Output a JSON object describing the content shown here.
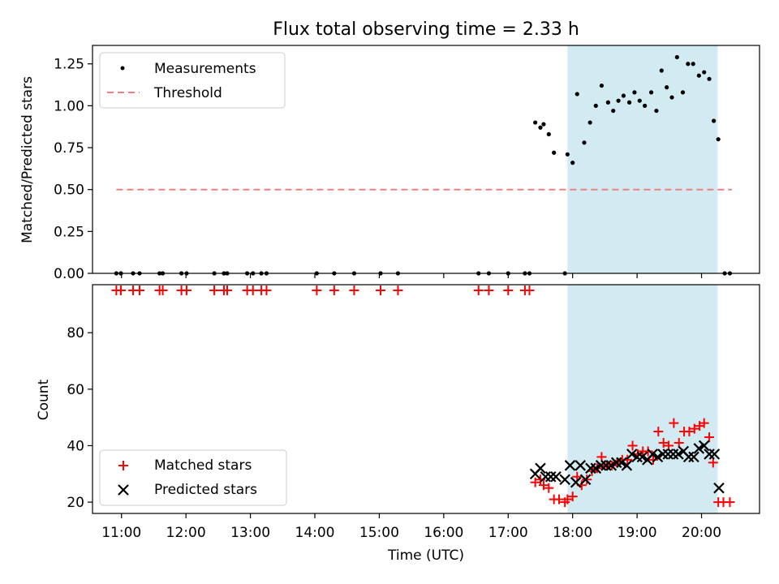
{
  "title": "Flux total observing time = 2.33 h",
  "colors": {
    "threshold": "#f08080",
    "highlight": "#add8e6",
    "measurement": "#000000",
    "matched": "#ff0000",
    "predicted": "#000000"
  },
  "chart_data": [
    {
      "type": "scatter",
      "ylabel": "Matched/Predicted stars",
      "xlim": [
        10.55,
        20.9
      ],
      "ylim": [
        0,
        1.36
      ],
      "y_ticks": [
        0.0,
        0.25,
        0.5,
        0.75,
        1.0,
        1.25
      ],
      "y_tick_labels": [
        "0.00",
        "0.25",
        "0.50",
        "0.75",
        "1.00",
        "1.25"
      ],
      "highlight_span": [
        17.92,
        20.25
      ],
      "legend": {
        "position": "upper left",
        "entries": [
          "Measurements",
          "Threshold"
        ]
      },
      "series": [
        {
          "name": "Measurements",
          "marker": "dot",
          "x": [
            10.92,
            10.99,
            11.18,
            11.28,
            11.59,
            11.64,
            11.93,
            12.01,
            12.44,
            12.59,
            12.64,
            12.95,
            13.04,
            13.17,
            13.25,
            14.03,
            14.3,
            14.61,
            15.02,
            15.29,
            16.54,
            16.7,
            17.0,
            17.26,
            17.33,
            17.42,
            17.5,
            17.55,
            17.63,
            17.71,
            17.88,
            17.92,
            18.0,
            18.07,
            18.18,
            18.27,
            18.36,
            18.45,
            18.55,
            18.63,
            18.71,
            18.79,
            18.88,
            18.96,
            19.04,
            19.12,
            19.22,
            19.3,
            19.38,
            19.46,
            19.54,
            19.62,
            19.71,
            19.79,
            19.87,
            19.96,
            20.04,
            20.12,
            20.19,
            20.26,
            20.36,
            20.44
          ],
          "y": [
            0,
            0,
            0,
            0,
            0,
            0,
            0,
            0,
            0,
            0,
            0,
            0,
            0,
            0,
            0,
            0,
            0,
            0,
            0,
            0,
            0,
            0,
            0,
            0,
            0,
            0.9,
            0.87,
            0.89,
            0.83,
            0.72,
            0,
            0.71,
            0.66,
            1.07,
            0.78,
            0.9,
            1.0,
            1.12,
            1.02,
            0.97,
            1.03,
            1.06,
            1.02,
            1.08,
            1.03,
            1.0,
            1.08,
            0.97,
            1.21,
            1.11,
            1.05,
            1.29,
            1.08,
            1.25,
            1.25,
            1.18,
            1.2,
            1.16,
            0.91,
            0.8,
            0,
            0
          ]
        },
        {
          "name": "Threshold",
          "style": "dashed",
          "x": [
            10.92,
            20.47
          ],
          "y": [
            0.5,
            0.5
          ]
        }
      ]
    },
    {
      "type": "scatter",
      "xlabel": "Time (UTC)",
      "ylabel": "Count",
      "xlim": [
        10.55,
        20.9
      ],
      "ylim": [
        16,
        97
      ],
      "x_ticks": [
        11,
        12,
        13,
        14,
        15,
        16,
        17,
        18,
        19,
        20
      ],
      "x_tick_labels": [
        "11:00",
        "12:00",
        "13:00",
        "14:00",
        "15:00",
        "16:00",
        "17:00",
        "18:00",
        "19:00",
        "20:00"
      ],
      "y_ticks": [
        20,
        40,
        60,
        80
      ],
      "y_tick_labels": [
        "20",
        "40",
        "60",
        "80"
      ],
      "highlight_span": [
        17.92,
        20.25
      ],
      "legend": {
        "position": "lower left",
        "entries": [
          "Matched stars",
          "Predicted stars"
        ]
      },
      "series": [
        {
          "name": "Matched stars",
          "marker": "plus",
          "x": [
            10.92,
            10.99,
            11.18,
            11.28,
            11.59,
            11.64,
            11.93,
            12.01,
            12.44,
            12.59,
            12.64,
            12.95,
            13.04,
            13.17,
            13.25,
            14.03,
            14.3,
            14.61,
            15.02,
            15.29,
            16.54,
            16.7,
            17.0,
            17.26,
            17.33,
            17.42,
            17.5,
            17.55,
            17.63,
            17.71,
            17.79,
            17.88,
            17.92,
            18.0,
            18.07,
            18.14,
            18.22,
            18.3,
            18.38,
            18.45,
            18.53,
            18.61,
            18.69,
            18.77,
            18.85,
            18.93,
            19.01,
            19.09,
            19.17,
            19.25,
            19.33,
            19.41,
            19.49,
            19.57,
            19.65,
            19.73,
            19.81,
            19.89,
            19.97,
            20.04,
            20.12,
            20.18,
            20.26,
            20.34,
            20.44
          ],
          "y": [
            95,
            95,
            95,
            95,
            95,
            95,
            95,
            95,
            95,
            95,
            95,
            95,
            95,
            95,
            95,
            95,
            95,
            95,
            95,
            95,
            95,
            95,
            95,
            95,
            95,
            27,
            28,
            26,
            25,
            21,
            21,
            20,
            21,
            22,
            29,
            26,
            28,
            31,
            32,
            36,
            33,
            33,
            34,
            35,
            35,
            40,
            37,
            38,
            38,
            35,
            45,
            41,
            40,
            48,
            41,
            45,
            45,
            46,
            47,
            48,
            43,
            34,
            20,
            20,
            20
          ]
        },
        {
          "name": "Predicted stars",
          "marker": "x",
          "x": [
            17.42,
            17.5,
            17.58,
            17.66,
            17.74,
            17.88,
            17.96,
            18.05,
            18.12,
            18.2,
            18.28,
            18.36,
            18.44,
            18.52,
            18.6,
            18.68,
            18.76,
            18.84,
            18.92,
            19.0,
            19.08,
            19.16,
            19.24,
            19.32,
            19.4,
            19.48,
            19.56,
            19.64,
            19.72,
            19.8,
            19.88,
            19.96,
            20.04,
            20.12,
            20.2,
            20.27
          ],
          "y": [
            30,
            32,
            29,
            29,
            29,
            28,
            33,
            27,
            33,
            28,
            32,
            32,
            33,
            33,
            33,
            34,
            34,
            33,
            37,
            36,
            36,
            35,
            37,
            36,
            37,
            37,
            37,
            37,
            38,
            36,
            36,
            39,
            40,
            37,
            37,
            25
          ]
        }
      ]
    }
  ]
}
